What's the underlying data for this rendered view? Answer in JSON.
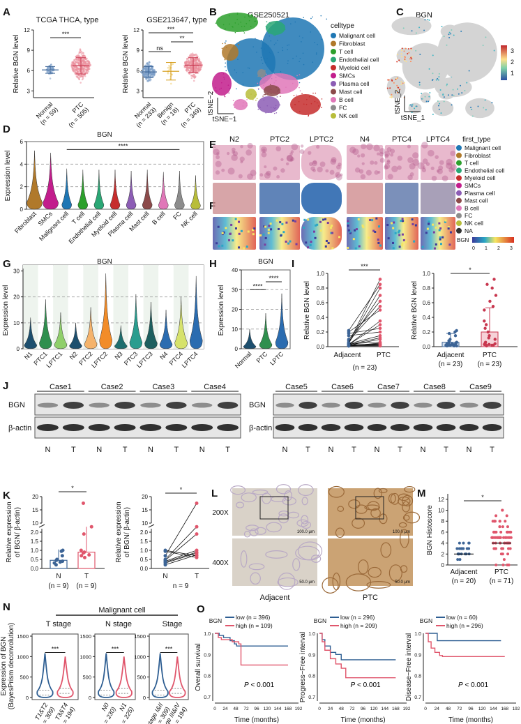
{
  "panel_labels": [
    "A",
    "B",
    "C",
    "D",
    "E",
    "F",
    "G",
    "H",
    "I",
    "J",
    "K",
    "L",
    "M",
    "N",
    "O"
  ],
  "chart_data": {
    "A1": {
      "type": "scatter",
      "title": "TCGA THCA, type",
      "ylabel": "Relative BGN level",
      "ylim": [
        2,
        12
      ],
      "yticks": [
        "3",
        "6",
        "9",
        "12"
      ],
      "ytick_values": [
        3,
        6,
        9,
        12
      ],
      "groups": [
        {
          "name": "Normal",
          "n_label": "(n = 59)",
          "n": 59,
          "mean": 6.1,
          "sd": 0.5,
          "color": "#7b9ec9",
          "dark": "#3c6496"
        },
        {
          "name": "PTC",
          "n_label": "(n = 505)",
          "n": 505,
          "mean": 6.7,
          "sd": 1.2,
          "color": "#eb8f9d",
          "dark": "#c8374f"
        }
      ],
      "sig": [
        {
          "from": 0,
          "to": 1,
          "label": "***"
        }
      ]
    },
    "A2": {
      "type": "scatter",
      "title": "GSE213647, type",
      "ylabel": "Relative BGN level",
      "ylim": [
        2,
        12
      ],
      "yticks": [
        "3",
        "6",
        "9",
        "12"
      ],
      "ytick_values": [
        3,
        6,
        9,
        12
      ],
      "groups": [
        {
          "name": "Normal",
          "n_label": "(n = 233)",
          "n": 233,
          "mean": 5.8,
          "sd": 0.8,
          "color": "#7b9ec9",
          "dark": "#3c6496"
        },
        {
          "name": "Benign",
          "n_label": "(n = 18)",
          "n": 18,
          "mean": 5.9,
          "sd": 1.3,
          "color": "#f0cc6a",
          "dark": "#d49a14"
        },
        {
          "name": "PTC",
          "n_label": "(n = 349)",
          "n": 349,
          "mean": 6.8,
          "sd": 1.1,
          "color": "#eb8f9d",
          "dark": "#c8374f"
        }
      ],
      "sig": [
        {
          "from": 0,
          "to": 2,
          "label": "***",
          "level": 3
        },
        {
          "from": 1,
          "to": 2,
          "label": "**",
          "level": 2
        },
        {
          "from": 0,
          "to": 1,
          "label": "ns",
          "level": 1
        }
      ]
    },
    "B": {
      "type": "scatter",
      "title": "GSE250521",
      "xlabel": "tSNE−1",
      "ylabel": "tSNE−2",
      "legend_title": "celltype",
      "legend": [
        {
          "label": "Malignant cell",
          "color": "#1f77b4"
        },
        {
          "label": "Fibroblast",
          "color": "#b0792b"
        },
        {
          "label": "T cell",
          "color": "#2ca02c"
        },
        {
          "label": "Endothelial cell",
          "color": "#2aa775"
        },
        {
          "label": "Myeloid cell",
          "color": "#c62d2d"
        },
        {
          "label": "SMCs",
          "color": "#c21d8c"
        },
        {
          "label": "Plasma cell",
          "color": "#8c5db5"
        },
        {
          "label": "Mast cell",
          "color": "#8c4a4a"
        },
        {
          "label": "B cell",
          "color": "#e077b8"
        },
        {
          "label": "FC",
          "color": "#8c8c8c"
        },
        {
          "label": "NK cell",
          "color": "#b8bd3a"
        }
      ]
    },
    "C": {
      "type": "scatter",
      "title": "BGN",
      "xlabel": "tSNE_1",
      "ylabel": "tSNE_2",
      "colorbar_ticks": [
        "1",
        "2",
        "3"
      ]
    },
    "D": {
      "type": "violin",
      "title": "BGN",
      "ylabel": "Expression level",
      "ylim": [
        0,
        6
      ],
      "yticks": [
        "0",
        "2",
        "4",
        "6"
      ],
      "ytick_values": [
        0,
        2,
        4,
        6
      ],
      "categories": [
        "Fibroblast",
        "SMCs",
        "Malignant cell",
        "T cell",
        "Endothelial cell",
        "Myeloid cell",
        "Plasma cell",
        "Mast cell",
        "B cell",
        "FC",
        "NK cell"
      ],
      "max": [
        5.2,
        5.0,
        3.6,
        3.5,
        3.5,
        3.5,
        3.4,
        3.5,
        3.3,
        3.4,
        3.0
      ],
      "median": [
        2.4,
        2.8,
        0.1,
        0.05,
        0.3,
        0.2,
        0.05,
        0.3,
        0.05,
        0.1,
        0.05
      ],
      "colors": [
        "#b0792b",
        "#c21d8c",
        "#1f77b4",
        "#2ca02c",
        "#2aa775",
        "#c62d2d",
        "#8c5db5",
        "#8c4a4a",
        "#e077b8",
        "#8c8c8c",
        "#b8bd3a"
      ],
      "sig": [
        {
          "from": 2,
          "to": 9,
          "label": "****"
        }
      ]
    },
    "EF": {
      "type": "heatmap",
      "samples": [
        "N2",
        "PTC2",
        "LPTC2",
        "N4",
        "PTC4",
        "LPTC4"
      ],
      "row_labels": [
        "E",
        "F"
      ],
      "legend_title": "first_type",
      "legend": [
        {
          "label": "Malignant cell",
          "color": "#1f77b4"
        },
        {
          "label": "Fibroblast",
          "color": "#b0792b"
        },
        {
          "label": "T cell",
          "color": "#2ca02c"
        },
        {
          "label": "Endothelial cell",
          "color": "#2aa775"
        },
        {
          "label": "Myeloid cell",
          "color": "#c62d2d"
        },
        {
          "label": "SMCs",
          "color": "#c21d8c"
        },
        {
          "label": "Plasma cell",
          "color": "#8c5db5"
        },
        {
          "label": "Mast cell",
          "color": "#8c4a4a"
        },
        {
          "label": "B cell",
          "color": "#e077b8"
        },
        {
          "label": "FC",
          "color": "#8c8c8c"
        },
        {
          "label": "NK cell",
          "color": "#b8bd3a"
        },
        {
          "label": "NA",
          "color": "#333333"
        }
      ],
      "colorbar_title": "BGN",
      "colorbar_ticks": [
        "0",
        "1",
        "2",
        "3"
      ]
    },
    "G": {
      "type": "violin",
      "title": "BGN",
      "ylabel": "Expression level",
      "ylim": [
        0,
        30
      ],
      "yticks": [
        "0",
        "10",
        "20",
        "30"
      ],
      "ytick_values": [
        0,
        10,
        20,
        30
      ],
      "categories": [
        "N1",
        "PTC1",
        "LPTC1",
        "N2",
        "PTC2",
        "LPTC2",
        "N3",
        "PTC3",
        "LPTC3",
        "N4",
        "PTC4",
        "LPTC4"
      ],
      "max": [
        12,
        19,
        14,
        10,
        16,
        29,
        9,
        21,
        18,
        15,
        20,
        28
      ],
      "colors": [
        "#1d4f6e",
        "#2f8f4e",
        "#8fcf6a",
        "#1d4f6e",
        "#f5b36b",
        "#f28c28",
        "#1d6e6e",
        "#2a9d8f",
        "#1d5f5f",
        "#2b6cb0",
        "#d6e26b",
        "#2b6cb0"
      ]
    },
    "H": {
      "type": "violin",
      "title": "BGN",
      "ylabel": "Expression level",
      "ylim": [
        0,
        40
      ],
      "yticks": [
        "0",
        "10",
        "20",
        "30",
        "40"
      ],
      "ytick_values": [
        0,
        10,
        20,
        30,
        40
      ],
      "categories": [
        "Normal",
        "PTC",
        "LPTC"
      ],
      "max": [
        10,
        18,
        28
      ],
      "colors": [
        "#1d4f6e",
        "#2f8f4e",
        "#2b6cb0"
      ],
      "sig": [
        {
          "from": 0,
          "to": 1,
          "label": "****"
        },
        {
          "from": 1,
          "to": 2,
          "label": "****"
        }
      ]
    },
    "I1": {
      "type": "scatter",
      "ylabel": "Relative BGN level",
      "ylim": [
        0,
        1
      ],
      "yticks": [
        "0.0",
        "0.2",
        "0.4",
        "0.6",
        "0.8",
        "1.0"
      ],
      "ytick_values": [
        0,
        0.2,
        0.4,
        0.6,
        0.8,
        1.0
      ],
      "categories": [
        "Adjacent",
        "PTC"
      ],
      "n_label": "(n = 23)",
      "sig": "***",
      "adjacent": [
        0.02,
        0.03,
        0.05,
        0.08,
        0.1,
        0.15,
        0.18,
        0.2,
        0.22,
        0.01,
        0.02,
        0.03,
        0.04,
        0.02,
        0.06,
        0.01,
        0.02,
        0.03,
        0.05,
        0.01,
        0.02,
        0.04,
        0.03
      ],
      "ptc": [
        0.02,
        0.3,
        0.92,
        0.55,
        0.62,
        0.2,
        0.25,
        0.5,
        0.85,
        0.05,
        0.1,
        0.02,
        0.15,
        0.03,
        0.8,
        0.02,
        0.04,
        0.12,
        0.7,
        0.01,
        0.03,
        0.06,
        0.35
      ]
    },
    "I2": {
      "type": "bar",
      "ylabel": "Relative BGN level",
      "ylim": [
        0,
        1
      ],
      "yticks": [
        "0.0",
        "0.2",
        "0.4",
        "0.6",
        "0.8",
        "1.0"
      ],
      "ytick_values": [
        0,
        0.2,
        0.4,
        0.6,
        0.8,
        1.0
      ],
      "categories": [
        "Adjacent",
        "PTC"
      ],
      "n_labels": [
        "(n = 23)",
        "(n = 23)"
      ],
      "means": [
        0.06,
        0.2
      ],
      "sd": [
        0.12,
        0.33
      ],
      "sig": "*",
      "colors": [
        "#3c6496",
        "#c8374f"
      ]
    },
    "J": {
      "cases_left": [
        "Case1",
        "Case2",
        "Case3",
        "Case4"
      ],
      "cases_right": [
        "Case5",
        "Case6",
        "Case7",
        "Case8",
        "Case9"
      ],
      "rows": [
        "BGN",
        "β-actin"
      ],
      "lanes_left": [
        "N",
        "T",
        "N",
        "T",
        "N",
        "T",
        "N",
        "T"
      ],
      "lanes_right": [
        "N",
        "T",
        "N",
        "T",
        "N",
        "T",
        "N",
        "T",
        "N",
        "T"
      ]
    },
    "K1": {
      "type": "bar",
      "ylabel": [
        "Relative expression",
        "of BGN/ β-actin)"
      ],
      "ylabel_prefix": "(",
      "yticks": [
        "0.0",
        "0.5",
        "1.0",
        "1.5",
        "2.0",
        "10",
        "15",
        "20"
      ],
      "categories": [
        "N",
        "T"
      ],
      "n_labels": [
        "(n = 9)",
        "(n = 9)"
      ],
      "means": [
        0.55,
        0.9
      ],
      "sig": "*",
      "n_values": [
        0.3,
        0.35,
        0.4,
        0.45,
        0.5,
        0.7,
        0.95,
        1.0,
        0.2
      ],
      "t_values": [
        0.6,
        0.7,
        0.75,
        0.85,
        0.9,
        1.0,
        1.9,
        2.3,
        17.5
      ]
    },
    "K2": {
      "type": "line",
      "ylabel": [
        "Relative expression",
        "of BGN/ β-actin)"
      ],
      "yticks": [
        "0.0",
        "0.5",
        "1.0",
        "1.5",
        "2.0",
        "10",
        "15",
        "20"
      ],
      "categories": [
        "N",
        "T"
      ],
      "n_label": "n = 9",
      "sig": "*"
    },
    "L": {
      "magnifications": [
        "200X",
        "400X"
      ],
      "groups": [
        "Adjacent",
        "PTC"
      ],
      "scale_bars": [
        "100.0 μm",
        "50.0 μm"
      ]
    },
    "M": {
      "type": "scatter",
      "ylabel": "BGN Histoscore",
      "ylim": [
        0,
        13
      ],
      "yticks": [
        "0",
        "2",
        "4",
        "6",
        "8",
        "10",
        "12"
      ],
      "ytick_values": [
        0,
        2,
        4,
        6,
        8,
        10,
        12
      ],
      "categories": [
        "Adjacent",
        "PTC"
      ],
      "n_labels": [
        "(n = 20)",
        "(n = 71)"
      ],
      "medians": [
        2,
        4
      ],
      "sig": "*",
      "ns": [
        20,
        71
      ]
    },
    "N": {
      "type": "violin",
      "title": "Malignant cell",
      "ylabel": [
        "Expression of BGN",
        "(BayesPrism deconvolution)"
      ],
      "ylim": [
        0,
        1500
      ],
      "yticks": [
        "0",
        "500",
        "1000",
        "1500"
      ],
      "ytick_values": [
        0,
        500,
        1000,
        1500
      ],
      "panels": [
        {
          "title": "T stage",
          "sig": "***",
          "groups": [
            {
              "name": "T1&T2",
              "n_label": "(n = 309)"
            },
            {
              "name": "T3&T4",
              "n_label": "(n = 194)"
            }
          ]
        },
        {
          "title": "N stage",
          "sig": "***",
          "groups": [
            {
              "name": "N0",
              "n_label": "(n = 230)"
            },
            {
              "name": "N1",
              "n_label": "(n = 225)"
            }
          ]
        },
        {
          "title": "Stage",
          "sig": "***",
          "groups": [
            {
              "name": "stage I&II",
              "n_label": "(n = 309)"
            },
            {
              "name": "stage III&IV",
              "n_label": "(n = 194)"
            }
          ]
        }
      ]
    },
    "O": {
      "type": "line",
      "xlabel": "Time (months)",
      "xlim": [
        0,
        192
      ],
      "xticks": [
        "0",
        "24",
        "48",
        "72",
        "96",
        "120",
        "144",
        "168",
        "192"
      ],
      "xtick_values": [
        0,
        24,
        48,
        72,
        96,
        120,
        144,
        168,
        192
      ],
      "ylim": [
        0.68,
        1.0
      ],
      "yticks": [
        "0.7",
        "0.8",
        "0.9",
        "1.0"
      ],
      "ytick_values": [
        0.7,
        0.8,
        0.9,
        1.0
      ],
      "legend_title": "BGN",
      "colors": [
        "#2e5e92",
        "#e0566c"
      ],
      "panels": [
        {
          "ylabel": "Overall survival",
          "p": "P",
          "p_rest": " < 0.001",
          "legend": [
            "low (n = 396)",
            "high (n = 109)"
          ],
          "low": [
            [
              0,
              1
            ],
            [
              10,
              0.99
            ],
            [
              20,
              0.98
            ],
            [
              35,
              0.965
            ],
            [
              45,
              0.95
            ],
            [
              50,
              0.94
            ],
            [
              168,
              0.94
            ]
          ],
          "high": [
            [
              0,
              1
            ],
            [
              8,
              0.98
            ],
            [
              15,
              0.97
            ],
            [
              40,
              0.96
            ],
            [
              55,
              0.95
            ],
            [
              60,
              0.85
            ],
            [
              168,
              0.85
            ]
          ]
        },
        {
          "ylabel": "Progress−Free interval",
          "p": "P",
          "p_rest": " < 0.001",
          "legend": [
            "low (n = 296)",
            "high (n = 209)"
          ],
          "low": [
            [
              0,
              1
            ],
            [
              6,
              0.97
            ],
            [
              12,
              0.94
            ],
            [
              24,
              0.91
            ],
            [
              36,
              0.9
            ],
            [
              48,
              0.875
            ],
            [
              168,
              0.875
            ]
          ],
          "high": [
            [
              0,
              1
            ],
            [
              6,
              0.96
            ],
            [
              12,
              0.92
            ],
            [
              24,
              0.88
            ],
            [
              36,
              0.855
            ],
            [
              48,
              0.835
            ],
            [
              58,
              0.79
            ],
            [
              168,
              0.79
            ]
          ]
        },
        {
          "ylabel": "Disease−Free interval",
          "p": "P",
          "p_rest": " < 0.001",
          "legend": [
            "low (n = 60)",
            "high (n = 296)"
          ],
          "low": [
            [
              0,
              1
            ],
            [
              24,
              1
            ],
            [
              25,
              0.965
            ],
            [
              160,
              0.965
            ]
          ],
          "high": [
            [
              0,
              1
            ],
            [
              6,
              0.96
            ],
            [
              12,
              0.93
            ],
            [
              20,
              0.91
            ],
            [
              30,
              0.895
            ],
            [
              36,
              0.89
            ],
            [
              168,
              0.89
            ]
          ]
        }
      ]
    }
  }
}
